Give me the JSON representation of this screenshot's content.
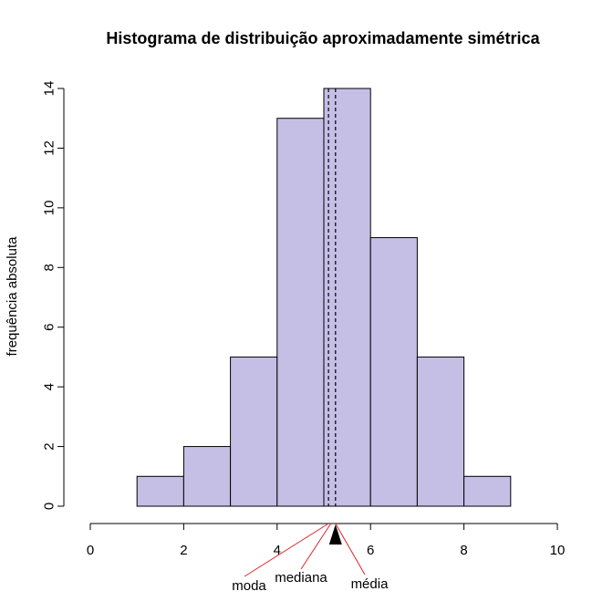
{
  "chart_data": {
    "type": "bar",
    "title": "Histograma de distribuição aproximadamente simétrica",
    "xlabel": "",
    "ylabel": "frequência absoluta",
    "bins": [
      [
        1,
        2
      ],
      [
        2,
        3
      ],
      [
        3,
        4
      ],
      [
        4,
        5
      ],
      [
        5,
        6
      ],
      [
        6,
        7
      ],
      [
        7,
        8
      ],
      [
        8,
        9
      ]
    ],
    "values": [
      1,
      2,
      5,
      13,
      14,
      9,
      5,
      1
    ],
    "xlim": [
      0,
      10
    ],
    "ylim": [
      0,
      14
    ],
    "x_ticks": [
      "0",
      "2",
      "4",
      "6",
      "8",
      "10"
    ],
    "y_ticks": [
      "0",
      "2",
      "4",
      "6",
      "8",
      "10",
      "12",
      "14"
    ],
    "bar_color": "#c5bfe6",
    "grid": false,
    "reference_lines": [
      {
        "x": 5.1,
        "style": "dashed"
      },
      {
        "x": 5.25,
        "style": "dashed"
      }
    ],
    "marker": {
      "x": 5.25,
      "shape": "filled-triangle"
    },
    "annotations": [
      {
        "text": "moda",
        "x": 5.1
      },
      {
        "text": "mediana",
        "x": 5.15
      },
      {
        "text": "média",
        "x": 5.25
      }
    ],
    "annotation_line_color": "#e0202a"
  }
}
